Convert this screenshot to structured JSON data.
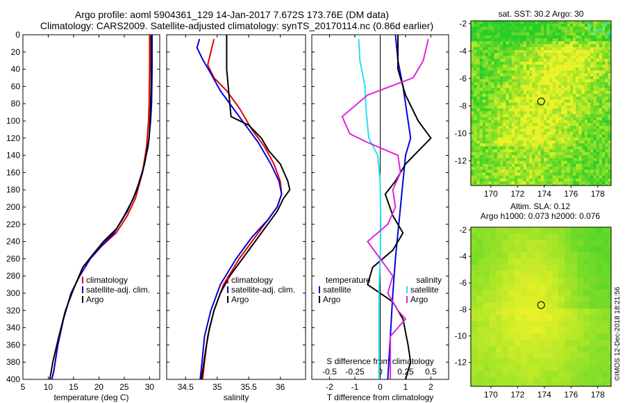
{
  "header": {
    "title_line1": "Argo profile: aoml 5904361_129 14-Jan-2017 7.672S 173.76E (DM data)",
    "title_line2": "Climatology: CARS2009. Satellite-adjusted climatology: synTS_20170114.nc (0.86d earlier)"
  },
  "colors": {
    "climatology": "#e00000",
    "satellite": "#0000dd",
    "argo": "#000000",
    "magenta": "#e020e0",
    "cyan": "#22e0f0"
  },
  "chart_data": [
    {
      "type": "line",
      "name": "temperature",
      "xlabel": "temperature (deg C)",
      "xlim": [
        5,
        32
      ],
      "ylim": [
        400,
        0
      ],
      "xticks": [
        5,
        10,
        15,
        20,
        25,
        30
      ],
      "yticks": [
        0,
        20,
        40,
        60,
        80,
        100,
        120,
        140,
        160,
        180,
        200,
        220,
        240,
        260,
        280,
        300,
        320,
        340,
        360,
        380,
        400
      ],
      "legend": [
        "climatology",
        "satellite-adj. clim.",
        "Argo"
      ],
      "series": [
        {
          "name": "climatology",
          "color": "#e00000",
          "points": [
            [
              30.0,
              0
            ],
            [
              30.0,
              40
            ],
            [
              29.9,
              80
            ],
            [
              29.8,
              100
            ],
            [
              29.4,
              130
            ],
            [
              28.6,
              160
            ],
            [
              27.2,
              190
            ],
            [
              25.6,
              210
            ],
            [
              23.4,
              230
            ],
            [
              20.6,
              245
            ],
            [
              18.3,
              260
            ],
            [
              16.2,
              280
            ],
            [
              14.5,
              300
            ],
            [
              13.0,
              330
            ],
            [
              11.9,
              360
            ],
            [
              11.1,
              390
            ],
            [
              10.7,
              400
            ]
          ]
        },
        {
          "name": "satellite-adj. clim.",
          "color": "#0000dd",
          "points": [
            [
              30.5,
              0
            ],
            [
              30.5,
              40
            ],
            [
              30.4,
              80
            ],
            [
              30.2,
              100
            ],
            [
              29.7,
              130
            ],
            [
              28.6,
              160
            ],
            [
              26.8,
              190
            ],
            [
              25.0,
              210
            ],
            [
              23.0,
              230
            ],
            [
              20.5,
              245
            ],
            [
              18.3,
              260
            ],
            [
              16.2,
              280
            ],
            [
              14.5,
              300
            ],
            [
              13.0,
              330
            ],
            [
              11.9,
              360
            ],
            [
              11.1,
              390
            ],
            [
              10.7,
              400
            ]
          ]
        },
        {
          "name": "Argo",
          "color": "#000000",
          "points": [
            [
              30.3,
              0
            ],
            [
              30.3,
              60
            ],
            [
              30.1,
              100
            ],
            [
              29.9,
              120
            ],
            [
              29.0,
              150
            ],
            [
              27.5,
              180
            ],
            [
              25.6,
              205
            ],
            [
              23.5,
              225
            ],
            [
              20.9,
              240
            ],
            [
              18.8,
              255
            ],
            [
              16.8,
              270
            ],
            [
              15.0,
              295
            ],
            [
              13.4,
              320
            ],
            [
              12.1,
              350
            ],
            [
              10.9,
              380
            ],
            [
              10.3,
              400
            ]
          ]
        }
      ]
    },
    {
      "type": "line",
      "name": "salinity",
      "xlabel": "salinity",
      "xlim": [
        34.2,
        36.4
      ],
      "ylim": [
        400,
        0
      ],
      "xticks": [
        34.5,
        35,
        35.5,
        36
      ],
      "xtick_labels": [
        "34.5",
        "35",
        "35.5",
        "36"
      ],
      "legend": [
        "climatology",
        "satellite-adj. clim.",
        "Argo"
      ],
      "series": [
        {
          "name": "climatology",
          "color": "#e00000",
          "points": [
            [
              34.95,
              5
            ],
            [
              34.9,
              20
            ],
            [
              34.85,
              35
            ],
            [
              34.95,
              50
            ],
            [
              35.15,
              65
            ],
            [
              35.35,
              85
            ],
            [
              35.55,
              110
            ],
            [
              35.75,
              130
            ],
            [
              35.9,
              150
            ],
            [
              36.0,
              170
            ],
            [
              36.02,
              185
            ],
            [
              35.95,
              200
            ],
            [
              35.8,
              215
            ],
            [
              35.6,
              235
            ],
            [
              35.35,
              260
            ],
            [
              35.1,
              290
            ],
            [
              34.95,
              320
            ],
            [
              34.85,
              350
            ],
            [
              34.8,
              380
            ],
            [
              34.77,
              400
            ]
          ]
        },
        {
          "name": "satellite-adj. clim.",
          "color": "#0000dd",
          "points": [
            [
              34.72,
              5
            ],
            [
              34.68,
              15
            ],
            [
              34.78,
              30
            ],
            [
              34.9,
              45
            ],
            [
              35.05,
              65
            ],
            [
              35.3,
              90
            ],
            [
              35.45,
              105
            ],
            [
              35.65,
              125
            ],
            [
              35.85,
              150
            ],
            [
              35.98,
              170
            ],
            [
              36.02,
              185
            ],
            [
              35.95,
              200
            ],
            [
              35.8,
              215
            ],
            [
              35.55,
              235
            ],
            [
              35.3,
              260
            ],
            [
              35.05,
              290
            ],
            [
              34.9,
              320
            ],
            [
              34.8,
              350
            ],
            [
              34.76,
              380
            ],
            [
              34.73,
              400
            ]
          ]
        },
        {
          "name": "Argo",
          "color": "#000000",
          "points": [
            [
              35.15,
              0
            ],
            [
              35.15,
              40
            ],
            [
              35.2,
              80
            ],
            [
              35.22,
              95
            ],
            [
              35.5,
              105
            ],
            [
              35.7,
              120
            ],
            [
              35.82,
              135
            ],
            [
              36.0,
              150
            ],
            [
              36.12,
              170
            ],
            [
              36.15,
              180
            ],
            [
              36.05,
              190
            ],
            [
              35.95,
              205
            ],
            [
              35.8,
              220
            ],
            [
              35.6,
              240
            ],
            [
              35.4,
              260
            ],
            [
              35.2,
              280
            ],
            [
              35.05,
              300
            ],
            [
              34.95,
              320
            ],
            [
              34.88,
              340
            ],
            [
              34.83,
              360
            ],
            [
              34.78,
              385
            ],
            [
              34.75,
              400
            ]
          ]
        }
      ]
    },
    {
      "type": "line",
      "name": "difference",
      "xlabel": "T difference from climatology",
      "top_label": "S difference from climatology",
      "xlim": [
        -2.7,
        2.7
      ],
      "ylim": [
        400,
        0
      ],
      "xticks": [
        -2,
        -1,
        0,
        1,
        2
      ],
      "xtick_labels": [
        "-2",
        "-1",
        "0",
        "1",
        "2"
      ],
      "top_ticks": [
        -0.5,
        -0.25,
        0,
        0.25,
        0.5
      ],
      "top_tick_labels": [
        "-0.5",
        "-0.25",
        "0",
        "0.25",
        "0.5"
      ],
      "legend_left_title": "temperature",
      "legend_right_title": "salinity",
      "legend_items": [
        "satellite",
        "Argo"
      ],
      "series": [
        {
          "name": "temperature satellite",
          "color": "#0000dd",
          "points": [
            [
              0.6,
              0
            ],
            [
              0.7,
              30
            ],
            [
              0.9,
              60
            ],
            [
              1.05,
              90
            ],
            [
              1.2,
              120
            ],
            [
              1.0,
              140
            ],
            [
              0.9,
              170
            ],
            [
              0.8,
              200
            ],
            [
              0.7,
              230
            ],
            [
              0.6,
              260
            ],
            [
              0.5,
              300
            ],
            [
              0.4,
              350
            ],
            [
              0.3,
              400
            ]
          ]
        },
        {
          "name": "temperature Argo",
          "color": "#000000",
          "points": [
            [
              0.7,
              0
            ],
            [
              0.7,
              40
            ],
            [
              1.0,
              70
            ],
            [
              1.5,
              100
            ],
            [
              2.0,
              120
            ],
            [
              1.5,
              135
            ],
            [
              1.0,
              150
            ],
            [
              0.6,
              170
            ],
            [
              0.2,
              185
            ],
            [
              0.5,
              210
            ],
            [
              0.9,
              230
            ],
            [
              0.5,
              250
            ],
            [
              -0.3,
              270
            ],
            [
              -0.5,
              290
            ],
            [
              0.5,
              310
            ],
            [
              0.9,
              330
            ],
            [
              1.1,
              360
            ],
            [
              1.2,
              380
            ],
            [
              1.0,
              400
            ]
          ]
        },
        {
          "name": "salinity satellite",
          "color": "#22e0f0",
          "points": [
            [
              -0.85,
              5
            ],
            [
              -0.8,
              30
            ],
            [
              -0.6,
              60
            ],
            [
              -0.55,
              90
            ],
            [
              -0.45,
              120
            ],
            [
              -0.1,
              140
            ],
            [
              0.0,
              170
            ],
            [
              0.02,
              220
            ],
            [
              0.0,
              260
            ],
            [
              -0.05,
              300
            ],
            [
              -0.05,
              350
            ],
            [
              -0.05,
              400
            ]
          ]
        },
        {
          "name": "salinity Argo",
          "color": "#e020e0",
          "points": [
            [
              1.9,
              5
            ],
            [
              1.7,
              30
            ],
            [
              1.3,
              50
            ],
            [
              -0.5,
              70
            ],
            [
              -1.5,
              95
            ],
            [
              -1.2,
              115
            ],
            [
              -0.5,
              125
            ],
            [
              0.7,
              140
            ],
            [
              0.8,
              160
            ],
            [
              0.5,
              180
            ],
            [
              0.6,
              200
            ],
            [
              0.3,
              220
            ],
            [
              -0.5,
              240
            ],
            [
              0.0,
              260
            ],
            [
              0.5,
              280
            ],
            [
              0.3,
              300
            ],
            [
              0.7,
              320
            ],
            [
              1.0,
              330
            ],
            [
              0.4,
              350
            ],
            [
              0.4,
              400
            ]
          ]
        }
      ]
    },
    {
      "type": "heatmap",
      "name": "sat-sst-map",
      "title": "sat. SST: 30.2 Argo: 30",
      "xlim": [
        168.5,
        179
      ],
      "ylim": [
        -13.8,
        -1.8
      ],
      "xticks": [
        170,
        172,
        174,
        176,
        178
      ],
      "yticks": [
        -2,
        -4,
        -6,
        -8,
        -10,
        -12
      ],
      "marker": [
        173.76,
        -7.672
      ]
    },
    {
      "type": "heatmap",
      "name": "altimetry-map",
      "title": "Altim. SLA: 0.12",
      "subtitle": "Argo h1000: 0.073 h2000: 0.076",
      "xlim": [
        168.5,
        179
      ],
      "ylim": [
        -13.8,
        -1.8
      ],
      "xticks": [
        170,
        172,
        174,
        176,
        178
      ],
      "yticks": [
        -2,
        -4,
        -6,
        -8,
        -10,
        -12
      ],
      "marker": [
        173.76,
        -7.672
      ]
    }
  ],
  "footer": {
    "credit": "©IMOS 12-Dec-2018 18:21:56"
  }
}
